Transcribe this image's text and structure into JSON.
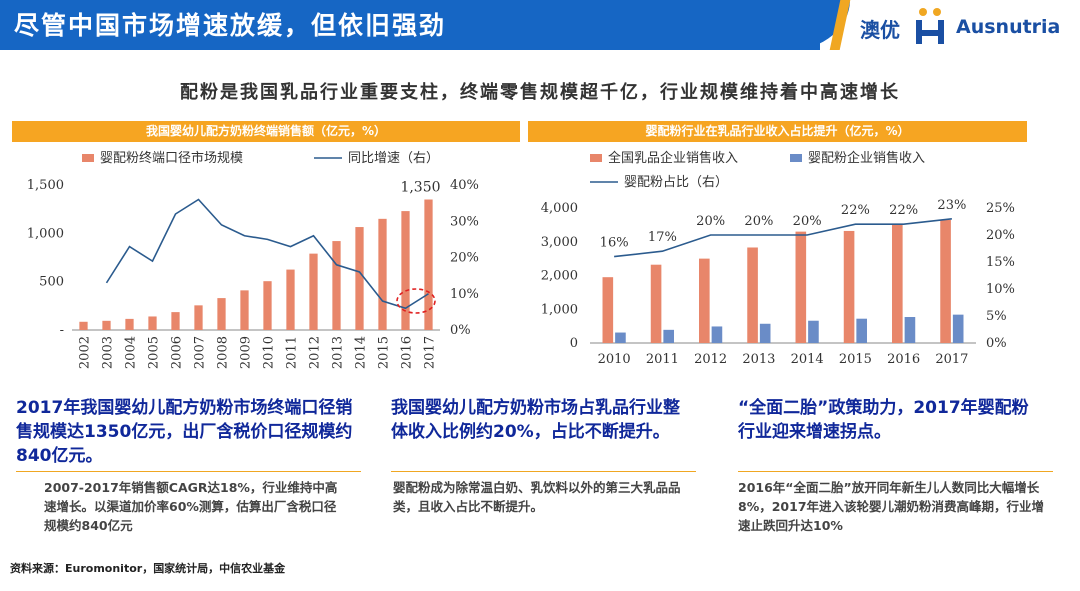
{
  "header": {
    "title": "尽管中国市场增速放缓，但依旧强劲",
    "logo_cn": "澳优",
    "logo_en": "Ausnutria"
  },
  "subtitle": "配粉是我国乳品行业重要支柱，终端零售规模超千亿，行业规模维持着中高速增长",
  "colors": {
    "bar_orange": "#e8866a",
    "bar_blue": "#6a8cc7",
    "line_blue": "#2b5b8e",
    "title_band": "#f6a522",
    "header_blue": "#1666c4",
    "highlight_text": "#10289a"
  },
  "chart_data": [
    {
      "type": "bar",
      "title": "我国婴幼儿配方奶粉终端销售额（亿元，%）",
      "categories": [
        "2002",
        "2003",
        "2004",
        "2005",
        "2006",
        "2007",
        "2008",
        "2009",
        "2010",
        "2011",
        "2012",
        "2013",
        "2014",
        "2015",
        "2016",
        "2017"
      ],
      "series": [
        {
          "name": "婴配粉终端口径市场规模",
          "type": "bar",
          "axis": "left",
          "values": [
            85,
            95,
            115,
            140,
            185,
            255,
            330,
            410,
            505,
            625,
            790,
            920,
            1065,
            1150,
            1230,
            1350
          ]
        },
        {
          "name": "同比增速（右）",
          "type": "line",
          "axis": "right",
          "values": [
            null,
            13,
            23,
            19,
            32,
            36,
            29,
            26,
            25,
            23,
            26,
            18,
            16,
            8,
            6,
            10
          ]
        }
      ],
      "data_labels": [
        {
          "category": "2017",
          "text": "1,350"
        }
      ],
      "yticks_left": [
        "-",
        "500",
        "1,000",
        "1,500"
      ],
      "ylim_left": [
        0,
        1500
      ],
      "yticks_right": [
        "0%",
        "10%",
        "20%",
        "30%",
        "40%"
      ],
      "ylim_right": [
        0,
        40
      ],
      "annotation": "red dashed circle around 2016–2017 growth rebound",
      "legend": "top"
    },
    {
      "type": "bar",
      "title": "婴配粉行业在乳品行业收入占比提升（亿元，%）",
      "categories": [
        "2010",
        "2011",
        "2012",
        "2013",
        "2014",
        "2015",
        "2016",
        "2017"
      ],
      "series": [
        {
          "name": "全国乳品企业销售收入",
          "type": "bar",
          "axis": "left",
          "values": [
            1950,
            2320,
            2500,
            2830,
            3300,
            3320,
            3500,
            3650
          ]
        },
        {
          "name": "婴配粉企业销售收入",
          "type": "bar",
          "axis": "left",
          "values": [
            310,
            390,
            490,
            570,
            660,
            720,
            770,
            840
          ]
        },
        {
          "name": "婴配粉占比（右）",
          "type": "line",
          "axis": "right",
          "values": [
            16,
            17,
            20,
            20,
            20,
            22,
            22,
            23
          ]
        }
      ],
      "line_labels": [
        "16%",
        "17%",
        "20%",
        "20%",
        "20%",
        "22%",
        "22%",
        "23%"
      ],
      "yticks_left": [
        "0",
        "1,000",
        "2,000",
        "3,000",
        "4,000"
      ],
      "ylim_left": [
        0,
        4000
      ],
      "yticks_right": [
        "0%",
        "5%",
        "10%",
        "15%",
        "20%",
        "25%"
      ],
      "ylim_right": [
        0,
        25
      ],
      "legend": "top"
    }
  ],
  "highlights": [
    {
      "title": "2017年我国婴幼儿配方奶粉市场终端口径销售规模达1350亿元，出厂含税价口径规模约840亿元。",
      "note": "2007-2017年销售额CAGR达18%，行业维持中高速增长。以渠道加价率60%测算，估算出厂含税口径规模约840亿元"
    },
    {
      "title": "我国婴幼儿配方奶粉市场占乳品行业整体收入比例约20%，占比不断提升。",
      "note": "婴配粉成为除常温白奶、乳饮料以外的第三大乳品品类，且收入占比不断提升。"
    },
    {
      "title": "“全面二胎”政策助力，2017年婴配粉行业迎来增速拐点。",
      "note": "2016年“全面二胎”放开同年新生儿人数同比大幅增长8%，2017年进入该轮婴儿潮奶粉消费高峰期，行业增速止跌回升达10%"
    }
  ],
  "source": "资料来源：Euromonitor，国家统计局，中信农业基金"
}
